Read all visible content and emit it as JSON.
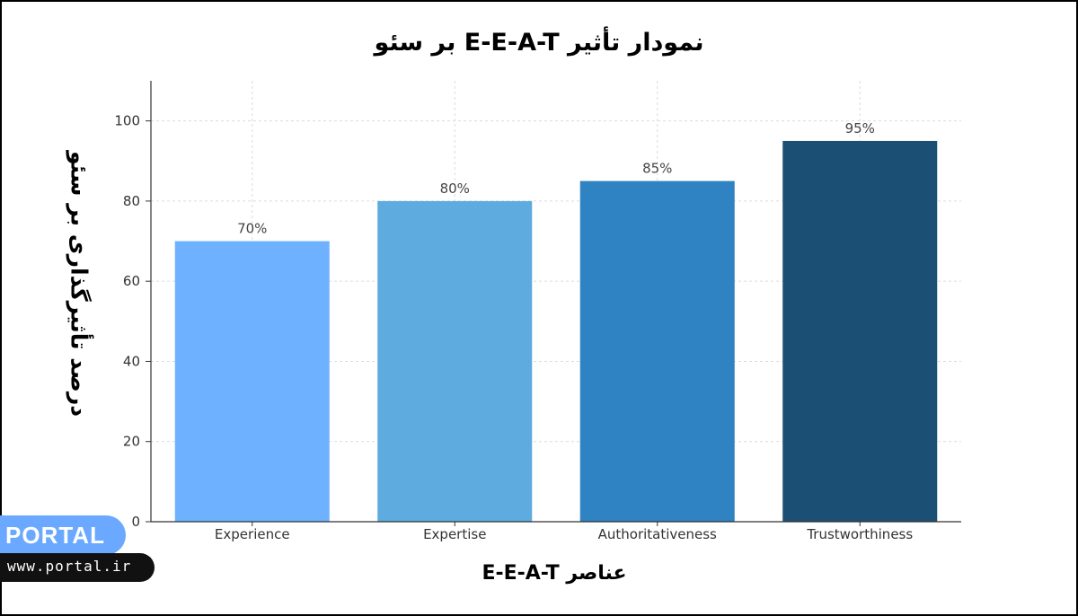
{
  "brand": {
    "name": "PORTAL",
    "url": "www.portal.ir"
  },
  "chart_data": {
    "type": "bar",
    "title": "نمودار تأثیر E-E-A-T بر سئو",
    "xlabel": "عناصر E-E-A-T",
    "ylabel": "درصد تأثیرگذاری بر سئو",
    "categories": [
      "Experience",
      "Expertise",
      "Authoritativeness",
      "Trustworthiness"
    ],
    "values": [
      70,
      80,
      85,
      95
    ],
    "value_labels": [
      "70%",
      "80%",
      "85%",
      "95%"
    ],
    "colors": [
      "#6eb2ff",
      "#5eacdf",
      "#2f83c2",
      "#1c4f74"
    ],
    "ylim": [
      0,
      110
    ],
    "yticks": [
      "0",
      "20",
      "40",
      "60",
      "80",
      "100"
    ],
    "grid": true
  }
}
